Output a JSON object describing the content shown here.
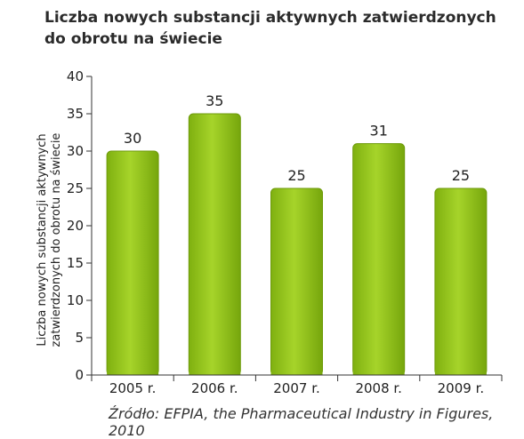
{
  "chart_data": {
    "type": "bar",
    "title": "Liczba nowych substancji aktywnych zatwierdzonych do obrotu na świecie",
    "ylabel": "Liczba nowych substancji aktywnych zatwierdzonych do obrotu na świecie",
    "xlabel": "",
    "categories": [
      "2005 r.",
      "2006 r.",
      "2007 r.",
      "2008 r.",
      "2009 r."
    ],
    "values": [
      30,
      35,
      25,
      31,
      25
    ],
    "data_labels": [
      "30",
      "35",
      "25",
      "31",
      "25"
    ],
    "ylim": [
      0,
      40
    ],
    "yticks": [
      0,
      5,
      10,
      15,
      20,
      25,
      30,
      35,
      40
    ],
    "grid": false,
    "legend": "none",
    "bar_color": "#8cbf14",
    "bar_color_dark": "#6d9a0a"
  },
  "source": "Źródło: EFPIA, the Pharmaceutical Industry in Figures, 2010"
}
